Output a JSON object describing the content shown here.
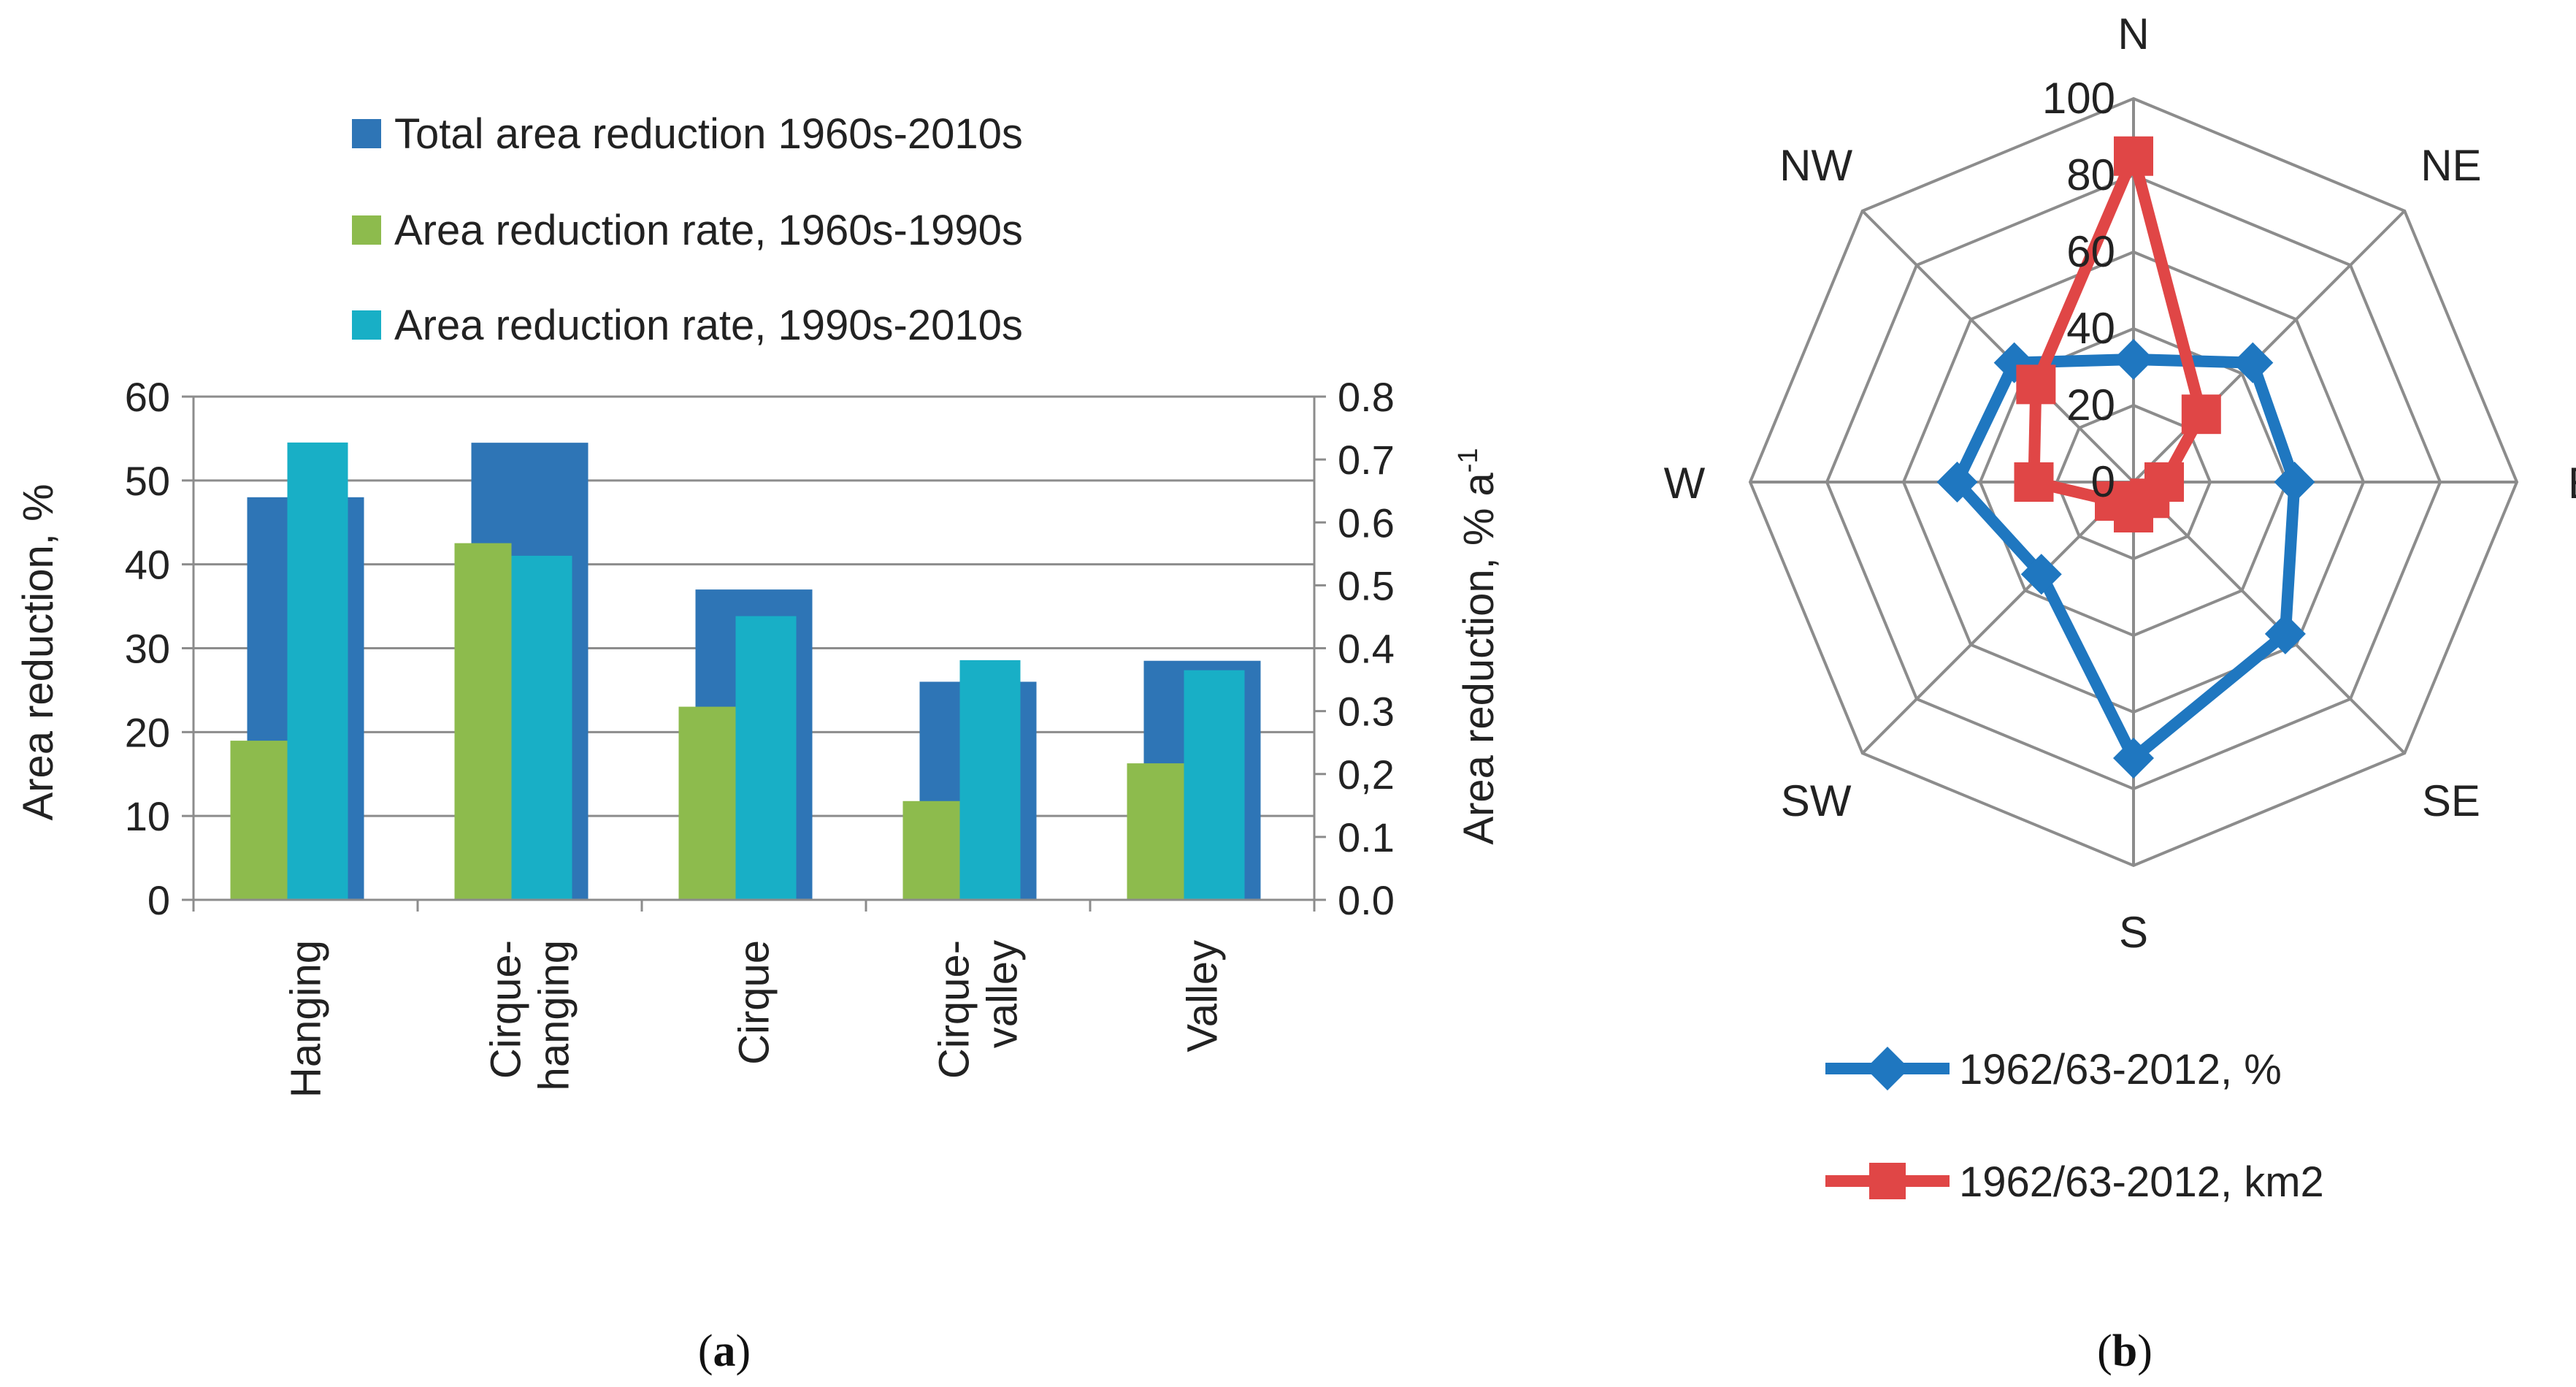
{
  "chart_data": [
    {
      "panel_label": "a",
      "type": "bar",
      "categories": [
        "Hanging",
        "Cirque-\nhanging",
        "Cirque",
        "Cirque-\nvalley",
        "Valley"
      ],
      "series": [
        {
          "name": "Total area reduction 1960s-2010s",
          "axis": "left",
          "color": "#2e75b6",
          "values": [
            48,
            54.5,
            37,
            26,
            28.5
          ]
        },
        {
          "name": "Area reduction rate, 1960s-1990s",
          "axis": "right",
          "color": "#8dbb4d",
          "values": [
            0.253,
            0.567,
            0.307,
            0.157,
            0.217
          ]
        },
        {
          "name": "Area reduction rate, 1990s-2010s",
          "axis": "right",
          "color": "#18afc6",
          "values": [
            0.727,
            0.547,
            0.451,
            0.381,
            0.365
          ]
        }
      ],
      "ylabel": "Area reduction, %",
      "ylim": [
        0,
        60
      ],
      "yticks": [
        "0",
        "10",
        "20",
        "30",
        "40",
        "50",
        "60"
      ],
      "y2label_main": "Area reduction, % a",
      "y2label_sup": "-1",
      "y2lim": [
        0,
        0.8
      ],
      "y2ticks": [
        "0.0",
        "0.1",
        "0,2",
        "0.3",
        "0.4",
        "0.5",
        "0.6",
        "0.7",
        "0.8"
      ],
      "grid": true,
      "legend": "top"
    },
    {
      "panel_label": "b",
      "type": "radar",
      "directions": [
        "N",
        "NE",
        "E",
        "SE",
        "S",
        "SW",
        "W",
        "NW"
      ],
      "rlim": [
        0,
        100
      ],
      "rticks": [
        "0",
        "20",
        "40",
        "60",
        "80",
        "100"
      ],
      "series": [
        {
          "name": "1962/63-2012, %",
          "color": "#1f77c0",
          "marker": "diamond",
          "values": [
            32,
            44,
            42,
            56,
            72,
            34,
            46,
            44
          ]
        },
        {
          "name": "1962/63-2012, km2",
          "color": "#e04646",
          "marker": "square",
          "values": [
            85,
            25,
            8,
            6,
            8,
            7,
            26,
            36
          ]
        }
      ],
      "legend": "bottom"
    }
  ]
}
